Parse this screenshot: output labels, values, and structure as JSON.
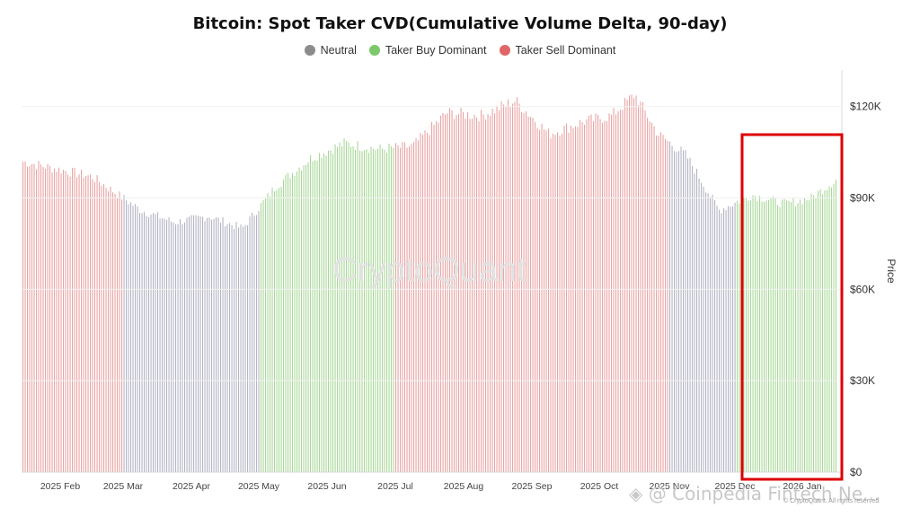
{
  "header": {
    "title": "Bitcoin: Spot Taker CVD(Cumulative Volume Delta, 90-day)"
  },
  "legend": [
    {
      "label": "Neutral",
      "color": "#8c8c8c"
    },
    {
      "label": "Taker Buy Dominant",
      "color": "#7cc86a"
    },
    {
      "label": "Taker Sell Dominant",
      "color": "#e06666"
    }
  ],
  "watermark": "CryptoQuant",
  "footer": {
    "source_label": "@ Coinpedia Fintech Ne...",
    "copyright": "© CryptoQuant. All rights reserved"
  },
  "colors": {
    "neutral": "#b4b4c4",
    "buy": "#a8d898",
    "sell": "#eaa4a4",
    "highlight": "#dd0000"
  },
  "chart_data": {
    "type": "bar",
    "y_axis_title": "Price",
    "y_axis_position": "right",
    "ylim": [
      0,
      132000
    ],
    "y_ticks": [
      {
        "value": 0,
        "label": "$0"
      },
      {
        "value": 30000,
        "label": "$30K"
      },
      {
        "value": 60000,
        "label": "$60K"
      },
      {
        "value": 90000,
        "label": "$90K"
      },
      {
        "value": 120000,
        "label": "$120K"
      }
    ],
    "x_ticks": [
      "2025 Feb",
      "2025 Mar",
      "2025 Apr",
      "2025 May",
      "2025 Jun",
      "2025 Jul",
      "2025 Aug",
      "2025 Sep",
      "2025 Oct",
      "2025 Nov",
      "2025 Dec",
      "2026 Jan"
    ],
    "segments": [
      {
        "from": "2025 Jan",
        "to": "2025 Mar",
        "regime": "sell"
      },
      {
        "from": "2025 Mar",
        "to": "2025 May",
        "regime": "neutral"
      },
      {
        "from": "2025 May",
        "to": "2025 Jul",
        "regime": "buy"
      },
      {
        "from": "2025 Jul",
        "to": "2025 Nov",
        "regime": "sell"
      },
      {
        "from": "2025 Nov",
        "to": "2025 Dec",
        "regime": "neutral"
      },
      {
        "from": "2025 Dec",
        "to": "2026 Jan",
        "regime": "buy"
      }
    ],
    "price_series": [
      [
        "2025 Jan",
        102000
      ],
      [
        "2025 Feb",
        97000
      ],
      [
        "2025 Mar",
        86000
      ],
      [
        "2025 Mar",
        82000
      ],
      [
        "2025 Apr",
        84000
      ],
      [
        "2025 Apr",
        80000
      ],
      [
        "2025 May",
        94000
      ],
      [
        "2025 May",
        103000
      ],
      [
        "2025 Jun",
        108000
      ],
      [
        "2025 Jun",
        106000
      ],
      [
        "2025 Jul",
        107000
      ],
      [
        "2025 Jul",
        118000
      ],
      [
        "2025 Aug",
        117000
      ],
      [
        "2025 Aug",
        122000
      ],
      [
        "2025 Sep",
        111000
      ],
      [
        "2025 Sep",
        115000
      ],
      [
        "2025 Oct",
        117000
      ],
      [
        "2025 Oct",
        124000
      ],
      [
        "2025 Oct",
        111000
      ],
      [
        "2025 Nov",
        104000
      ],
      [
        "2025 Nov",
        86000
      ],
      [
        "2025 Dec",
        91000
      ],
      [
        "2025 Dec",
        88000
      ],
      [
        "2026 Jan",
        90000
      ],
      [
        "2026 Jan",
        96000
      ]
    ],
    "annotation": {
      "type": "highlight-box",
      "label": "",
      "from": "2025 Dec",
      "to": "2026 Jan"
    }
  }
}
